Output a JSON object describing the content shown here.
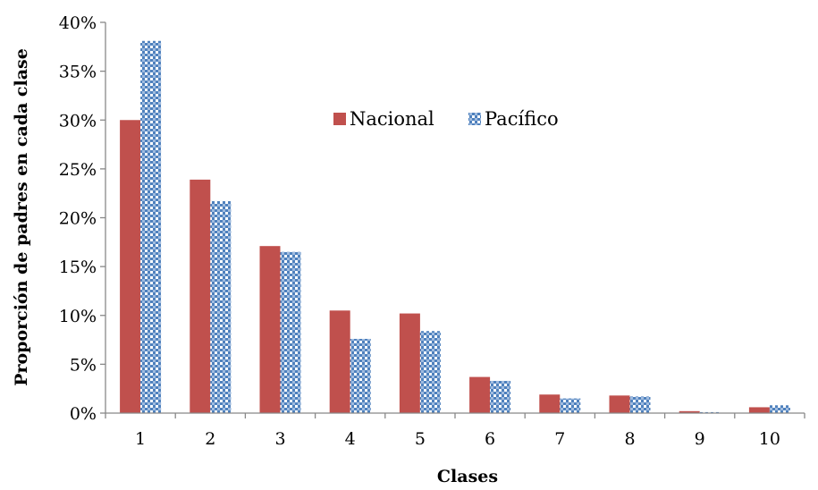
{
  "chart_data": {
    "type": "bar",
    "title": "",
    "xlabel": "Clases",
    "ylabel": "Proporción de padres en cada clase",
    "categories": [
      "1",
      "2",
      "3",
      "4",
      "5",
      "6",
      "7",
      "8",
      "9",
      "10"
    ],
    "ylim": [
      0,
      40
    ],
    "yticks": [
      "0%",
      "5%",
      "10%",
      "15%",
      "20%",
      "25%",
      "30%",
      "35%",
      "40%"
    ],
    "grid": false,
    "legend_position": "top-center",
    "series": [
      {
        "name": "Nacional",
        "color": "#c0504d",
        "pattern": "solid",
        "values": [
          30.0,
          23.9,
          17.1,
          10.5,
          10.2,
          3.7,
          1.9,
          1.8,
          0.2,
          0.6
        ]
      },
      {
        "name": "Pacífico",
        "color": "#4f81bd",
        "pattern": "checker",
        "values": [
          38.1,
          21.7,
          16.5,
          7.6,
          8.4,
          3.3,
          1.5,
          1.7,
          0.1,
          0.8
        ]
      }
    ]
  }
}
